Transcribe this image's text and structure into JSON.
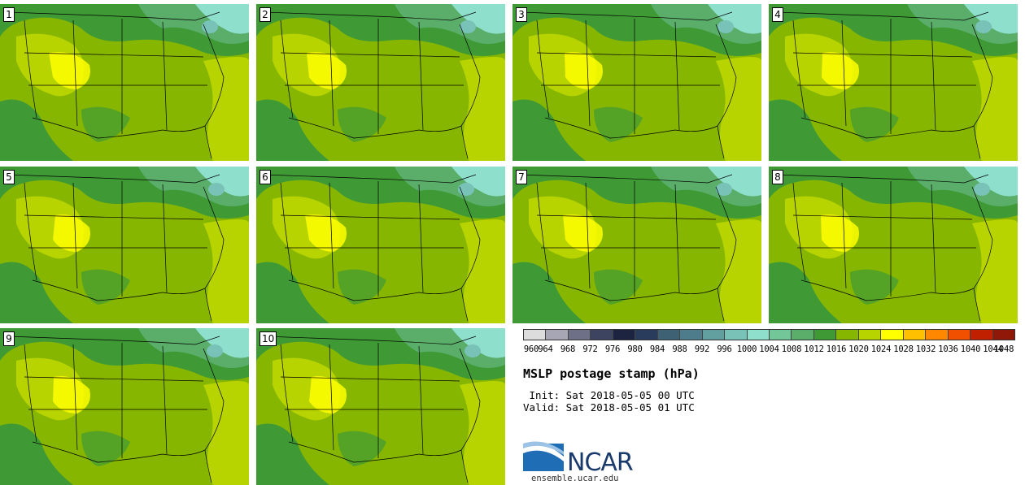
{
  "stamps": [
    {
      "label": "1"
    },
    {
      "label": "2"
    },
    {
      "label": "3"
    },
    {
      "label": "4"
    },
    {
      "label": "5"
    },
    {
      "label": "6"
    },
    {
      "label": "7"
    },
    {
      "label": "8"
    },
    {
      "label": "9"
    },
    {
      "label": "10"
    }
  ],
  "colorbar": {
    "ticks": [
      "960",
      "964",
      "968",
      "972",
      "976",
      "980",
      "984",
      "988",
      "992",
      "996",
      "1000",
      "1004",
      "1008",
      "1012",
      "1016",
      "1020",
      "1024",
      "1028",
      "1032",
      "1036",
      "1040",
      "1044",
      "1048"
    ],
    "colors": [
      "#dcdcdc",
      "#a6a6b4",
      "#6e7088",
      "#3c4460",
      "#1c2440",
      "#2a3c5c",
      "#3e6274",
      "#4e7c8a",
      "#62a0a0",
      "#78c2b8",
      "#8ee0cc",
      "#72c698",
      "#5aae6a",
      "#3f9a36",
      "#86b600",
      "#b8d400",
      "#ffff00",
      "#ffc000",
      "#ff8800",
      "#f05000",
      "#c02000",
      "#901808",
      "#601008"
    ]
  },
  "title": "MSLP postage stamp (hPa)",
  "init": " Init: Sat 2018-05-05 00 UTC",
  "valid": "Valid: Sat 2018-05-05 01 UTC",
  "logo": {
    "text": "NCAR",
    "site": "ensemble.ucar.edu"
  }
}
